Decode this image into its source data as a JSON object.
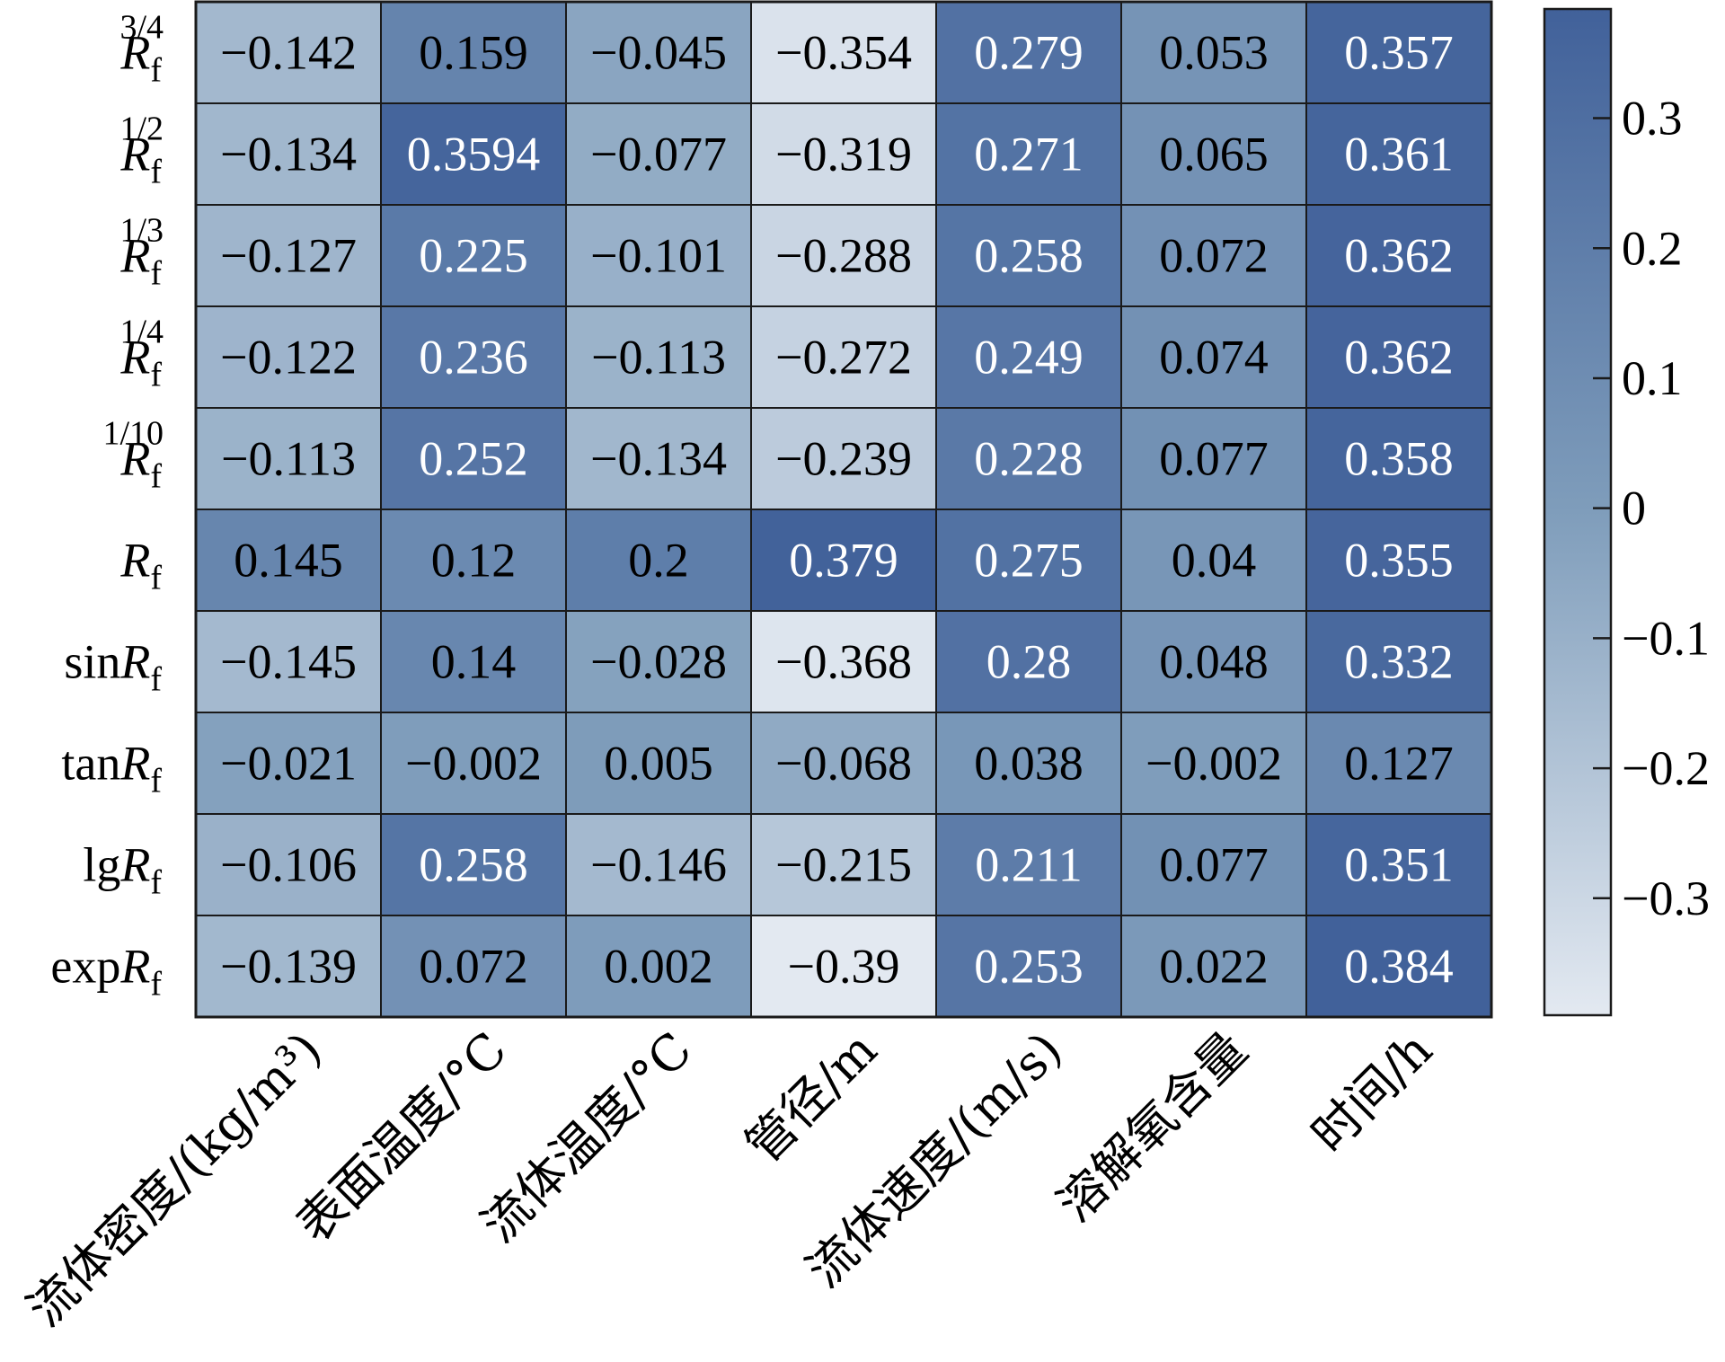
{
  "chart_data": {
    "type": "heatmap",
    "columns": [
      "流体密度/(kg/m³)",
      "表面温度/°C",
      "流体温度/°C",
      "管径/m",
      "流体速度/(m/s)",
      "溶解氧含量",
      "时间/h"
    ],
    "rows": [
      {
        "base": "R",
        "sub": "f",
        "prefix": "",
        "sup": "3/4"
      },
      {
        "base": "R",
        "sub": "f",
        "prefix": "",
        "sup": "1/2"
      },
      {
        "base": "R",
        "sub": "f",
        "prefix": "",
        "sup": "1/3"
      },
      {
        "base": "R",
        "sub": "f",
        "prefix": "",
        "sup": "1/4"
      },
      {
        "base": "R",
        "sub": "f",
        "prefix": "",
        "sup": "1/10"
      },
      {
        "base": "R",
        "sub": "f",
        "prefix": "",
        "sup": ""
      },
      {
        "base": "R",
        "sub": "f",
        "prefix": "sin",
        "sup": ""
      },
      {
        "base": "R",
        "sub": "f",
        "prefix": "tan",
        "sup": ""
      },
      {
        "base": "R",
        "sub": "f",
        "prefix": "lg",
        "sup": ""
      },
      {
        "base": "R",
        "sub": "f",
        "prefix": "exp",
        "sup": ""
      }
    ],
    "values": [
      [
        -0.142,
        0.159,
        -0.045,
        -0.354,
        0.279,
        0.053,
        0.357
      ],
      [
        -0.134,
        0.3594,
        -0.077,
        -0.319,
        0.271,
        0.065,
        0.361
      ],
      [
        -0.127,
        0.225,
        -0.101,
        -0.288,
        0.258,
        0.072,
        0.362
      ],
      [
        -0.122,
        0.236,
        -0.113,
        -0.272,
        0.249,
        0.074,
        0.362
      ],
      [
        -0.113,
        0.252,
        -0.134,
        -0.239,
        0.228,
        0.077,
        0.358
      ],
      [
        0.145,
        0.12,
        0.2,
        0.379,
        0.275,
        0.04,
        0.355
      ],
      [
        -0.145,
        0.14,
        -0.028,
        -0.368,
        0.28,
        0.048,
        0.332
      ],
      [
        -0.021,
        -0.002,
        0.005,
        -0.068,
        0.038,
        -0.002,
        0.127
      ],
      [
        -0.106,
        0.258,
        -0.146,
        -0.215,
        0.211,
        0.077,
        0.351
      ],
      [
        -0.139,
        0.072,
        0.002,
        -0.39,
        0.253,
        0.022,
        0.384
      ]
    ],
    "value_labels": [
      [
        "−0.142",
        "0.159",
        "−0.045",
        "−0.354",
        "0.279",
        "0.053",
        "0.357"
      ],
      [
        "−0.134",
        "0.3594",
        "−0.077",
        "−0.319",
        "0.271",
        "0.065",
        "0.361"
      ],
      [
        "−0.127",
        "0.225",
        "−0.101",
        "−0.288",
        "0.258",
        "0.072",
        "0.362"
      ],
      [
        "−0.122",
        "0.236",
        "−0.113",
        "−0.272",
        "0.249",
        "0.074",
        "0.362"
      ],
      [
        "−0.113",
        "0.252",
        "−0.134",
        "−0.239",
        "0.228",
        "0.077",
        "0.358"
      ],
      [
        "0.145",
        "0.12",
        "0.2",
        "0.379",
        "0.275",
        "0.04",
        "0.355"
      ],
      [
        "−0.145",
        "0.14",
        "−0.028",
        "−0.368",
        "0.28",
        "0.048",
        "0.332"
      ],
      [
        "−0.021",
        "−0.002",
        "0.005",
        "−0.068",
        "0.038",
        "−0.002",
        "0.127"
      ],
      [
        "−0.106",
        "0.258",
        "−0.146",
        "−0.215",
        "0.211",
        "0.077",
        "0.351"
      ],
      [
        "−0.139",
        "0.072",
        "0.002",
        "−0.39",
        "0.253",
        "0.022",
        "0.384"
      ]
    ],
    "colorbar": {
      "min": -0.39,
      "max": 0.384,
      "ticks": [
        0.3,
        0.2,
        0.1,
        0,
        -0.1,
        -0.2,
        -0.3
      ],
      "tick_labels": [
        "0.3",
        "0.2",
        "0.1",
        "0",
        "−0.1",
        "−0.2",
        "−0.3"
      ],
      "color_low": "#e3e9f1",
      "color_mid": "#7f9dbb",
      "color_high": "#41619a"
    },
    "title": "",
    "xlabel": "",
    "ylabel": "",
    "grid": true
  }
}
